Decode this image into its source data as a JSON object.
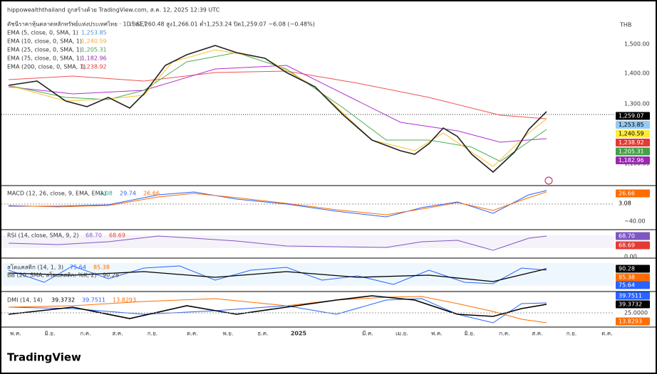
{
  "header": {
    "caption": "hippowealththailand ถูกสร้างด้วย TradingView.com, ส.ค. 12, 2025 12:39 UTC"
  },
  "price_pane": {
    "symbol": "ดัชนีราคาหุ้นตลาดหลักทรัพย์แห่งประเทศไทย · 1D · SET",
    "ohlc": "เปิด1,260.48  สูง1,266.01  ต่ำ1,253.24  ปิด1,259.07  −6.08 (−0.48%)",
    "currency": "THB",
    "indicators": [
      {
        "name": "EMA (5, close, 0, SMA, 1)",
        "value": "1,253.85"
      },
      {
        "name": "EMA (10, close, 0, SMA, 1)",
        "value": "1,240.59"
      },
      {
        "name": "EMA (25, close, 0, SMA, 1)",
        "value": "1,205.31"
      },
      {
        "name": "EMA (75, close, 0, SMA, 1)",
        "value": "1,182.96"
      },
      {
        "name": "EMA (200, close, 0, SMA, 1)",
        "value": "1,238.92"
      }
    ],
    "axis": [
      "1,500.00",
      "1,400.00",
      "1,300.00",
      "1,100.00"
    ],
    "tags": [
      "1,259.07",
      "1,253.85",
      "1,240.59",
      "1,238.92",
      "1,205.31",
      "1,182.96"
    ]
  },
  "macd_pane": {
    "name": "MACD (12, 26, close, 9, EMA, EMA)",
    "values": [
      "3.08",
      "29.74",
      "26.66"
    ],
    "axis": [
      "−40.00"
    ],
    "tags": [
      "26.66",
      "3.08"
    ]
  },
  "rsi_pane": {
    "name": "RSI (14, close, SMA, 9, 2)",
    "values": [
      "68.70",
      "68.69"
    ],
    "axis": [
      "0.00"
    ],
    "tags": [
      "68.70",
      "68.69"
    ]
  },
  "stoch_pane": {
    "name": "สโตแคสติก (14, 1, 3)",
    "values": [
      "75.64",
      "85.38"
    ],
    "bb_name": "BB (20, SMA, สโตแคสติก: %K, 2)",
    "bb_value": "90.28",
    "tags": [
      "90.28",
      "85.38",
      "75.64"
    ]
  },
  "dmi_pane": {
    "name": "DMI (14, 14)",
    "values": [
      "39.3732",
      "39.7511",
      "13.8293"
    ],
    "tags": [
      "39.7511",
      "39.3732",
      "25.0000",
      "13.8293"
    ]
  },
  "time_axis": [
    "พ.ค.",
    "มิ.ย.",
    "ก.ค.",
    "ส.ค.",
    "ก.ย.",
    "ต.ค.",
    "พ.ย.",
    "ธ.ค.",
    "2025",
    "มี.ค.",
    "เม.ย.",
    "พ.ค.",
    "มิ.ย.",
    "ก.ค.",
    "ส.ค.",
    "ก.ย.",
    "ต.ค."
  ],
  "footer": {
    "logo": "TradingView"
  }
}
